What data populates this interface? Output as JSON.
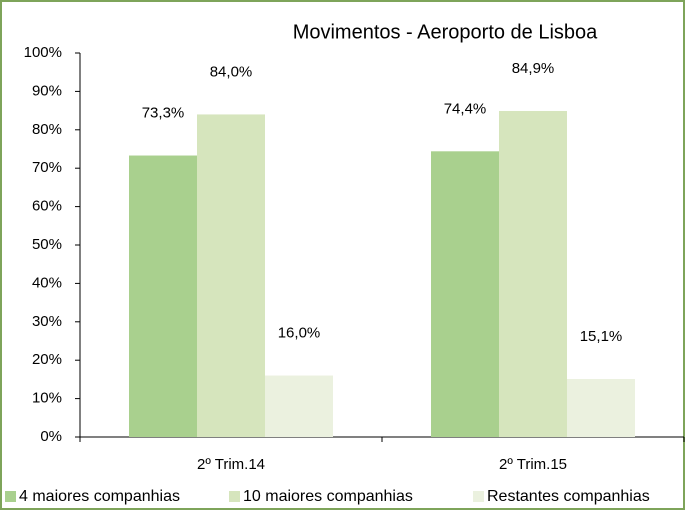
{
  "chart_data": {
    "type": "bar",
    "title": "Movimentos - Aeroporto de Lisboa",
    "categories": [
      "2º Trim.14",
      "2º Trim.15"
    ],
    "series": [
      {
        "name": "4 maiores companhias",
        "color": "#a9d08e",
        "values": [
          73.3,
          74.4
        ],
        "value_labels": [
          "73,3%",
          "74,4%"
        ]
      },
      {
        "name": "10 maiores companhias",
        "color": "#d6e5bd",
        "values": [
          84.0,
          84.9
        ],
        "value_labels": [
          "84,0%",
          "84,9%"
        ]
      },
      {
        "name": "Restantes companhias",
        "color": "#ebf1df",
        "values": [
          16.0,
          15.1
        ],
        "value_labels": [
          "16,0%",
          "15,1%"
        ]
      }
    ],
    "ylim": [
      0,
      100
    ],
    "yticks": [
      {
        "value": 0,
        "label": "0%"
      },
      {
        "value": 10,
        "label": "10%"
      },
      {
        "value": 20,
        "label": "20%"
      },
      {
        "value": 30,
        "label": "30%"
      },
      {
        "value": 40,
        "label": "40%"
      },
      {
        "value": 50,
        "label": "50%"
      },
      {
        "value": 60,
        "label": "60%"
      },
      {
        "value": 70,
        "label": "70%"
      },
      {
        "value": 80,
        "label": "80%"
      },
      {
        "value": 90,
        "label": "90%"
      },
      {
        "value": 100,
        "label": "100%"
      }
    ],
    "legend": "bottom"
  }
}
